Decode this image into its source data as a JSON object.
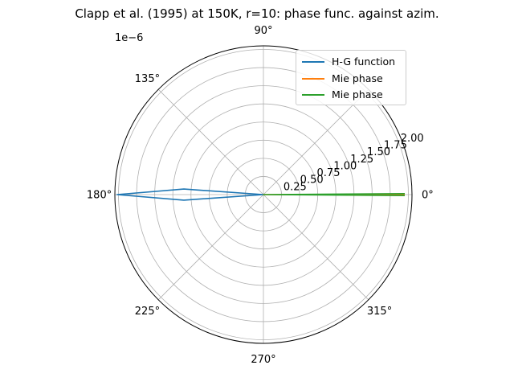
{
  "chart_data": {
    "type": "line",
    "projection": "polar",
    "title": "Clapp et al. (1995) at 150K, r=10: phase func. against azim.",
    "radial_scale_label": "1e−6",
    "angle_ticks_deg": [
      0,
      45,
      90,
      135,
      180,
      225,
      270,
      315
    ],
    "angle_tick_labels": [
      "0°",
      "",
      "90°",
      "135°",
      "180°",
      "225°",
      "270°",
      "315°"
    ],
    "radial_ticks": [
      0.25,
      0.5,
      0.75,
      1.0,
      1.25,
      1.5,
      1.75,
      2.0
    ],
    "radial_tick_labels": [
      "0.25",
      "0.50",
      "0.75",
      "1.00",
      "1.25",
      "1.50",
      "1.75",
      "2.00"
    ],
    "rlim": [
      0,
      2.05
    ],
    "grid": true,
    "legend_position": "top-right",
    "series": [
      {
        "name": "H-G function",
        "color": "#1f77b4",
        "points": [
          {
            "theta": 0,
            "r": 0.0
          },
          {
            "theta": 176,
            "r": 1.1
          },
          {
            "theta": 180,
            "r": 2.02
          },
          {
            "theta": 184,
            "r": 1.1
          },
          {
            "theta": 0,
            "r": 0.0
          }
        ]
      },
      {
        "name": "Mie phase",
        "color": "#ff7f0e",
        "points": [
          {
            "theta": 0,
            "r": 0.0
          },
          {
            "theta": 0,
            "r": 1.95
          }
        ]
      },
      {
        "name": "Mie phase",
        "color": "#2ca02c",
        "points": [
          {
            "theta": 359.6,
            "r": 1.95
          },
          {
            "theta": 0,
            "r": 0.0
          },
          {
            "theta": 0.4,
            "r": 1.95
          }
        ]
      }
    ]
  }
}
